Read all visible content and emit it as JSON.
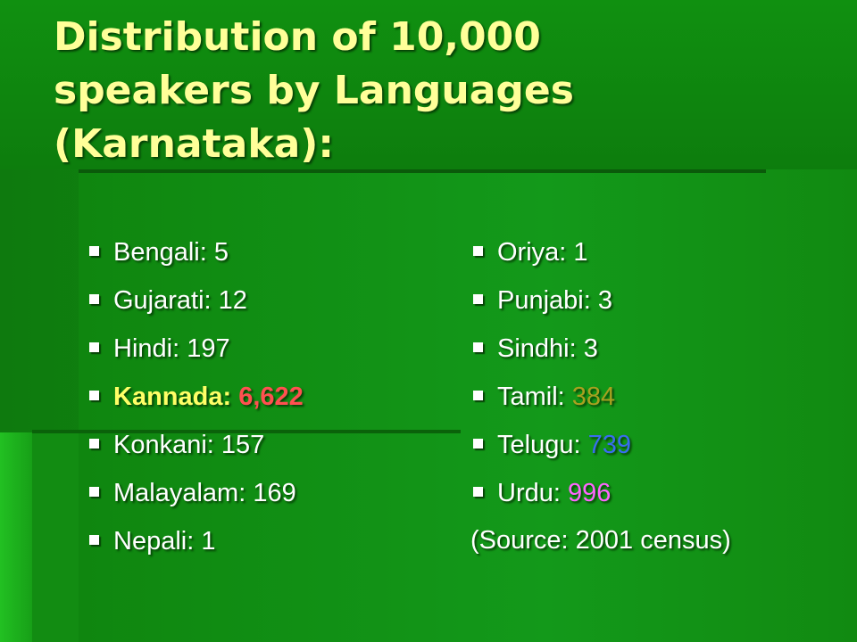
{
  "title": "Distribution of 10,000 speakers by Languages (Karnataka):",
  "left_list": [
    {
      "label": "Bengali:",
      "value": "5"
    },
    {
      "label": "Gujarati:",
      "value": "12"
    },
    {
      "label": "Hindi:",
      "value": "197"
    },
    {
      "label": "Kannada:",
      "value": "6,622",
      "label_color": "#ffff66",
      "value_color": "#ff5050",
      "bold": true
    },
    {
      "label": "Konkani:",
      "value": "157"
    },
    {
      "label": "Malayalam:",
      "value": "169"
    },
    {
      "label": "Nepali:",
      "value": "1"
    }
  ],
  "right_list": [
    {
      "label": "Oriya:",
      "value": "1"
    },
    {
      "label": "Punjabi:",
      "value": "3"
    },
    {
      "label": "Sindhi:",
      "value": "3"
    },
    {
      "label": "Tamil:",
      "value": "384",
      "value_color": "#a8a020"
    },
    {
      "label": "Telugu:",
      "value": "739",
      "value_color": "#3a6cf0"
    },
    {
      "label": "Urdu:",
      "value": "996",
      "value_color": "#ff66ff"
    }
  ],
  "source": "(Source: 2001 census)"
}
